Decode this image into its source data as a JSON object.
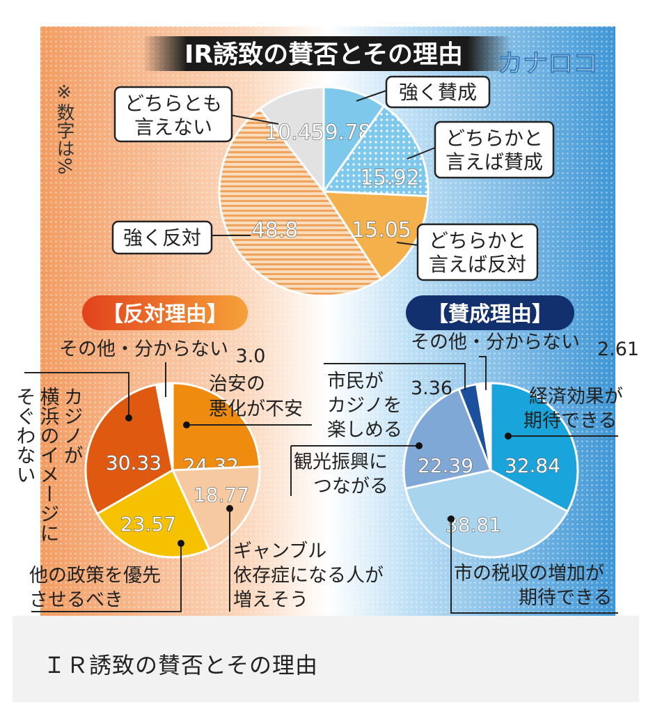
{
  "header": {
    "title": "IR誘致の賛否とその理由",
    "watermark": "カナロコ"
  },
  "note": "※数字は%",
  "caption": "ＩＲ誘致の賛否とその理由",
  "colors": {
    "oppose_bg": "#f2a06b",
    "support_bg": "#4a9ad8",
    "oppose_tag": "#e8602c",
    "support_tag": "#13306e",
    "title_bar": "#1a1a1a"
  },
  "chart_data": [
    {
      "type": "pie",
      "title": "IR誘致の賛否とその理由",
      "slices": [
        {
          "label": "強く賛成",
          "value": 9.78,
          "value_text": "9.78",
          "color": "#7ec8ec",
          "pattern": "none"
        },
        {
          "label": "どちらかと言えば賛成",
          "value": 15.92,
          "value_text": "15.92",
          "color": "#7ec8ec",
          "pattern": "dots"
        },
        {
          "label": "どちらかと言えば反対",
          "value": 15.05,
          "value_text": "15.05",
          "color": "#f4b04a",
          "pattern": "none"
        },
        {
          "label": "強く反対",
          "value": 48.8,
          "value_text": "48.8",
          "color": "#f3c08a",
          "pattern": "stripes"
        },
        {
          "label": "どちらとも言えない",
          "value": 10.45,
          "value_text": "10.45",
          "color": "#e2e2e2",
          "pattern": "none"
        }
      ]
    },
    {
      "type": "pie",
      "title": "【反対理由】",
      "slices": [
        {
          "label": "治安の悪化が不安",
          "value": 24.32,
          "value_text": "24.32",
          "color": "#ef8c10"
        },
        {
          "label": "ギャンブル依存症になる人が増えそう",
          "value": 18.77,
          "value_text": "18.77",
          "color": "#f6c9a0"
        },
        {
          "label": "他の政策を優先させるべき",
          "value": 23.57,
          "value_text": "23.57",
          "color": "#f6c200"
        },
        {
          "label": "カジノが横浜のイメージにそぐわない",
          "value": 30.33,
          "value_text": "30.33",
          "color": "#df5a10"
        },
        {
          "label": "その他・分からない",
          "value": 3.0,
          "value_text": "3.0",
          "color": "#ffffff"
        }
      ]
    },
    {
      "type": "pie",
      "title": "【賛成理由】",
      "slices": [
        {
          "label": "経済効果が期待できる",
          "value": 32.84,
          "value_text": "32.84",
          "color": "#1aa4dc"
        },
        {
          "label": "市の税収の増加が期待できる",
          "value": 38.81,
          "value_text": "38.81",
          "color": "#a9d4ee"
        },
        {
          "label": "観光振興につながる",
          "value": 22.39,
          "value_text": "22.39",
          "color": "#80a8d6"
        },
        {
          "label": "市民がカジノを楽しめる",
          "value": 3.36,
          "value_text": "3.36",
          "color": "#1c4f9c"
        },
        {
          "label": "その他・分からない",
          "value": 2.61,
          "value_text": "2.61",
          "color": "#ffffff"
        }
      ]
    }
  ]
}
